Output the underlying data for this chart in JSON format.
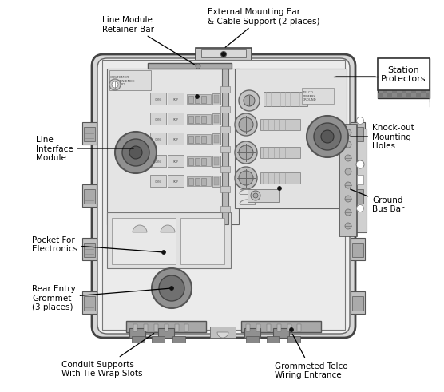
{
  "bg_color": "#ffffff",
  "labels": {
    "line_module_retainer_bar": "Line Module\nRetainer Bar",
    "external_mounting_ear": "External Mounting Ear\n& Cable Support (2 places)",
    "station_protectors": "Station\nProtectors",
    "knockout_mounting_holes": "Knock-out\nMounting\nHoles",
    "line_interface_module": "Line\nInterface\nModule",
    "ground_bus_bar": "Ground\nBus Bar",
    "pocket_for_electronics": "Pocket For\nElectronics",
    "rear_entry_grommet": "Rear Entry\nGrommet\n(3 places)",
    "conduit_supports": "Conduit Supports\nWith Tie Wrap Slots",
    "grommeted_telco": "Grommeted Telco\nWiring Entrance"
  }
}
